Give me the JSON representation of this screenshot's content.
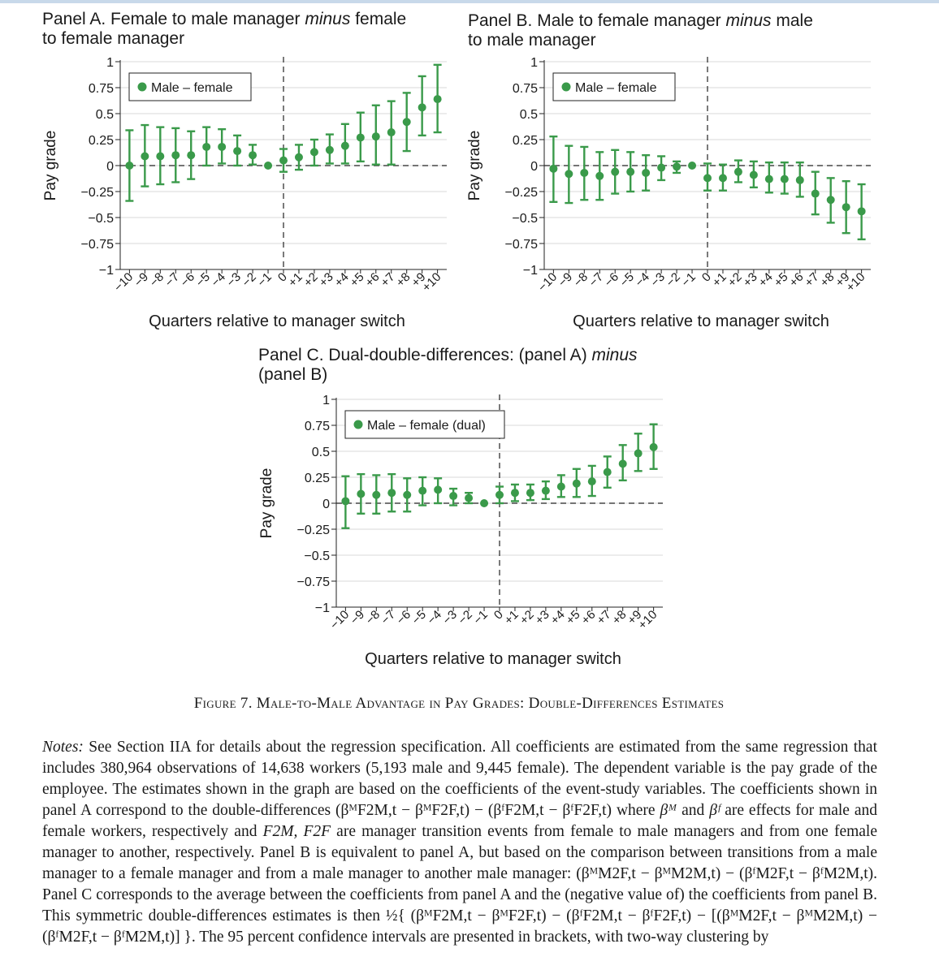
{
  "panels": [
    {
      "title_pre": "Panel A. Female to male manager ",
      "title_em": "minus",
      "title_post": " female",
      "title_line2": "to female manager",
      "legend": "Male – female",
      "ylabel": "Pay grade",
      "xlabel": "Quarters relative to manager switch"
    },
    {
      "title_pre": "Panel B. Male to female manager ",
      "title_em": "minus",
      "title_post": " male",
      "title_line2": "to male manager",
      "legend": "Male – female",
      "ylabel": "Pay grade",
      "xlabel": "Quarters relative to manager switch"
    },
    {
      "title_pre": "Panel C. Dual-double-differences: (panel A) ",
      "title_em": "minus",
      "title_post": "",
      "title_line2": "(panel B)",
      "legend": "Male – female (dual)",
      "ylabel": "Pay grade",
      "xlabel": "Quarters relative to manager switch"
    }
  ],
  "chart_data": [
    {
      "type": "scatter",
      "x": [
        -10,
        -9,
        -8,
        -7,
        -6,
        -5,
        -4,
        -3,
        -2,
        -1,
        0,
        1,
        2,
        3,
        4,
        5,
        6,
        7,
        8,
        9,
        10
      ],
      "xtick_labels": [
        "−10",
        "−9",
        "−8",
        "−7",
        "−6",
        "−5",
        "−4",
        "−3",
        "−2",
        "−1",
        "0",
        "+1",
        "+2",
        "+3",
        "+4",
        "+5",
        "+6",
        "+7",
        "+8",
        "+9",
        "+10"
      ],
      "series": [
        {
          "name": "Male – female",
          "y": [
            0.0,
            0.09,
            0.09,
            0.1,
            0.1,
            0.18,
            0.18,
            0.14,
            0.1,
            0.0,
            0.05,
            0.08,
            0.13,
            0.15,
            0.19,
            0.27,
            0.28,
            0.32,
            0.42,
            0.56,
            0.64
          ],
          "lo": [
            -0.34,
            -0.2,
            -0.18,
            -0.16,
            -0.13,
            0.0,
            0.02,
            0.0,
            0.01,
            0.0,
            -0.06,
            -0.04,
            0.0,
            0.02,
            0.02,
            0.04,
            0.01,
            0.01,
            0.14,
            0.29,
            0.32
          ],
          "hi": [
            0.34,
            0.39,
            0.37,
            0.36,
            0.33,
            0.37,
            0.35,
            0.29,
            0.2,
            0.0,
            0.16,
            0.2,
            0.25,
            0.3,
            0.4,
            0.51,
            0.58,
            0.62,
            0.7,
            0.86,
            0.97
          ]
        }
      ],
      "ylim": [
        -1,
        1
      ],
      "yticks": [
        -1,
        -0.75,
        -0.5,
        -0.25,
        0,
        0.25,
        0.5,
        0.75,
        1
      ],
      "ytick_labels": [
        "−1",
        "−0.75",
        "−0.5",
        "−0.25",
        "0",
        "0.25",
        "0.5",
        "0.75",
        "1"
      ],
      "grid": true,
      "legend_position": "top-left",
      "color": "#3a9a4a"
    },
    {
      "type": "scatter",
      "x": [
        -10,
        -9,
        -8,
        -7,
        -6,
        -5,
        -4,
        -3,
        -2,
        -1,
        0,
        1,
        2,
        3,
        4,
        5,
        6,
        7,
        8,
        9,
        10
      ],
      "xtick_labels": [
        "−10",
        "−9",
        "−8",
        "−7",
        "−6",
        "−5",
        "−4",
        "−3",
        "−2",
        "−1",
        "0",
        "+1",
        "+2",
        "+3",
        "+4",
        "+5",
        "+6",
        "+7",
        "+8",
        "+9",
        "+10"
      ],
      "series": [
        {
          "name": "Male – female",
          "y": [
            -0.03,
            -0.08,
            -0.07,
            -0.1,
            -0.06,
            -0.06,
            -0.07,
            -0.02,
            -0.01,
            0.0,
            -0.12,
            -0.12,
            -0.06,
            -0.09,
            -0.13,
            -0.13,
            -0.14,
            -0.27,
            -0.33,
            -0.4,
            -0.44
          ],
          "lo": [
            -0.35,
            -0.36,
            -0.33,
            -0.33,
            -0.27,
            -0.25,
            -0.24,
            -0.14,
            -0.07,
            0.0,
            -0.24,
            -0.24,
            -0.16,
            -0.21,
            -0.26,
            -0.27,
            -0.3,
            -0.47,
            -0.55,
            -0.65,
            -0.71
          ],
          "hi": [
            0.28,
            0.19,
            0.18,
            0.13,
            0.15,
            0.13,
            0.1,
            0.09,
            0.04,
            0.0,
            0.02,
            0.01,
            0.05,
            0.04,
            0.03,
            0.03,
            0.03,
            -0.06,
            -0.12,
            -0.15,
            -0.18
          ]
        }
      ],
      "ylim": [
        -1,
        1
      ],
      "yticks": [
        -1,
        -0.75,
        -0.5,
        -0.25,
        0,
        0.25,
        0.5,
        0.75,
        1
      ],
      "ytick_labels": [
        "−1",
        "−0.75",
        "−0.5",
        "−0.25",
        "0",
        "0.25",
        "0.5",
        "0.75",
        "1"
      ],
      "grid": true,
      "legend_position": "top-left",
      "color": "#3a9a4a"
    },
    {
      "type": "scatter",
      "x": [
        -10,
        -9,
        -8,
        -7,
        -6,
        -5,
        -4,
        -3,
        -2,
        -1,
        0,
        1,
        2,
        3,
        4,
        5,
        6,
        7,
        8,
        9,
        10
      ],
      "xtick_labels": [
        "−10",
        "−9",
        "−8",
        "−7",
        "−6",
        "−5",
        "−4",
        "−3",
        "−2",
        "−1",
        "0",
        "+1",
        "+2",
        "+3",
        "+4",
        "+5",
        "+6",
        "+7",
        "+8",
        "+9",
        "+10"
      ],
      "series": [
        {
          "name": "Male – female (dual)",
          "y": [
            0.02,
            0.09,
            0.08,
            0.1,
            0.08,
            0.12,
            0.13,
            0.07,
            0.05,
            0.0,
            0.08,
            0.1,
            0.1,
            0.12,
            0.16,
            0.19,
            0.21,
            0.3,
            0.38,
            0.48,
            0.54
          ],
          "lo": [
            -0.24,
            -0.1,
            -0.1,
            -0.08,
            -0.08,
            -0.02,
            0.0,
            -0.02,
            0.0,
            0.0,
            0.0,
            0.02,
            0.03,
            0.04,
            0.06,
            0.06,
            0.07,
            0.15,
            0.22,
            0.31,
            0.33
          ],
          "hi": [
            0.26,
            0.28,
            0.27,
            0.28,
            0.24,
            0.25,
            0.24,
            0.14,
            0.1,
            0.0,
            0.16,
            0.18,
            0.18,
            0.21,
            0.27,
            0.33,
            0.36,
            0.45,
            0.56,
            0.67,
            0.76
          ]
        }
      ],
      "ylim": [
        -1,
        1
      ],
      "yticks": [
        -1,
        -0.75,
        -0.5,
        -0.25,
        0,
        0.25,
        0.5,
        0.75,
        1
      ],
      "ytick_labels": [
        "−1",
        "−0.75",
        "−0.5",
        "−0.25",
        "0",
        "0.25",
        "0.5",
        "0.75",
        "1"
      ],
      "grid": true,
      "legend_position": "top-left",
      "color": "#3a9a4a"
    }
  ],
  "caption": "Figure 7. Male-to-Male Advantage in Pay Grades: Double-Differences Estimates",
  "notes": {
    "label": "Notes:",
    "p1": " See Section IIA for details about the regression specification. All coefficients are estimated from the same regression that includes 380,964 observations of 14,638 workers (5,193 male and 9,445 female). The dependent variable is the pay grade of the employee. The estimates shown in the graph are based on the coefficients of the event-study variables. The coefficients shown in panel A correspond to the double-differences ",
    "m1": "(βᴹF2M,t − βᴹF2F,t) − (βᶠF2M,t − βᶠF2F,t)",
    "p2": " where ",
    "m2": "βᴹ",
    "p3": " and ",
    "m3": "βᶠ",
    "p4": " are effects for male and female workers, respectively and ",
    "m4": "F2M, F2F",
    "p5": " are manager transition events from female to male managers and from one female manager to another, respectively. Panel B is equivalent to panel A, but based on the comparison between transitions from a male manager to a female manager and from a male manager to another male manager: ",
    "m5": "(βᴹM2F,t − βᴹM2M,t) − (βᶠM2F,t − βᶠM2M,t)",
    "p6": ". Panel C corresponds to the average between the coefficients from panel A and the (negative value of) the coefficients from panel B. This symmetric double-differences estimates is then ",
    "m6": "½{ (βᴹF2M,t − βᴹF2F,t) − (βᶠF2M,t − βᶠF2F,t) − [(βᴹM2F,t − βᴹM2M,t) − (βᶠM2F,t − βᶠM2M,t)] }",
    "p7": ". The 95 percent confidence intervals are presented in brackets, with two-way clustering by"
  }
}
